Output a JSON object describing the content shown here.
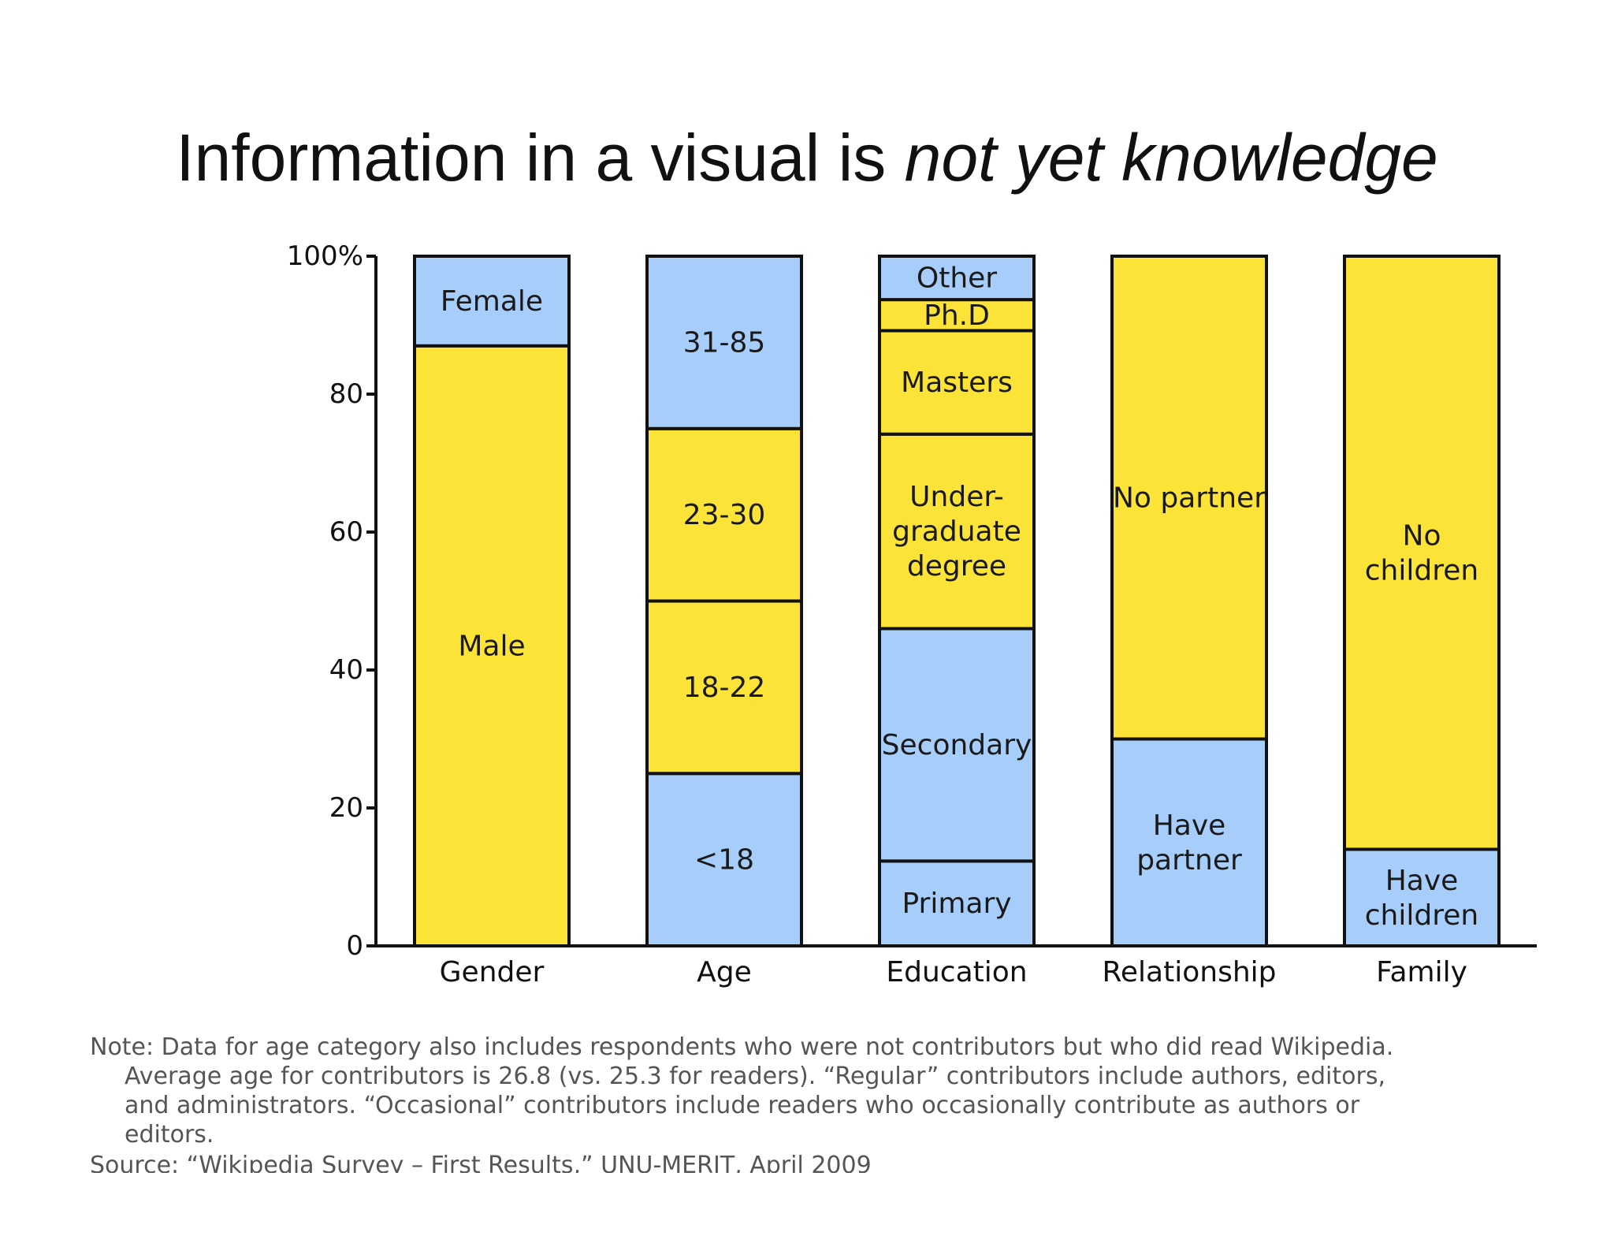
{
  "slide": {
    "title_plain": "Information in a visual is ",
    "title_emphasis": "not yet knowledge"
  },
  "chart_data": {
    "type": "bar",
    "stacked": true,
    "percent": true,
    "categories": [
      "Gender",
      "Age",
      "Education",
      "Relationship",
      "Family"
    ],
    "yticks": [
      "0",
      "20",
      "40",
      "60",
      "80",
      "100%"
    ],
    "ylim": [
      0,
      100
    ],
    "grid": false,
    "colors": {
      "blue": "#a7cefa",
      "yellow": "#fbe338",
      "outline": "#111111"
    },
    "stacks": [
      {
        "category": "Gender",
        "segments": [
          {
            "label": [
              "Male"
            ],
            "value": 87,
            "color": "yellow"
          },
          {
            "label": [
              "Female"
            ],
            "value": 13,
            "color": "blue"
          }
        ]
      },
      {
        "category": "Age",
        "segments": [
          {
            "label": [
              "<18"
            ],
            "value": 25,
            "color": "blue"
          },
          {
            "label": [
              "18-22"
            ],
            "value": 25,
            "color": "yellow"
          },
          {
            "label": [
              "23-30"
            ],
            "value": 25,
            "color": "yellow"
          },
          {
            "label": [
              "31-85"
            ],
            "value": 25,
            "color": "blue"
          }
        ]
      },
      {
        "category": "Education",
        "segments": [
          {
            "label": [
              "Primary"
            ],
            "value": 12.3,
            "color": "blue"
          },
          {
            "label": [
              "Secondary"
            ],
            "value": 33.7,
            "color": "blue"
          },
          {
            "label": [
              "Under-",
              "graduate",
              "degree"
            ],
            "value": 28.2,
            "color": "yellow"
          },
          {
            "label": [
              "Masters"
            ],
            "value": 15,
            "color": "yellow"
          },
          {
            "label": [
              "Ph.D"
            ],
            "value": 4.5,
            "color": "yellow"
          },
          {
            "label": [
              "Other"
            ],
            "value": 6.3,
            "color": "blue"
          }
        ]
      },
      {
        "category": "Relationship",
        "segments": [
          {
            "label": [
              "Have",
              "partner"
            ],
            "value": 30,
            "color": "blue"
          },
          {
            "label": [
              "No partner"
            ],
            "value": 70,
            "color": "yellow"
          }
        ]
      },
      {
        "category": "Family",
        "segments": [
          {
            "label": [
              "Have",
              "children"
            ],
            "value": 14,
            "color": "blue"
          },
          {
            "label": [
              "No",
              "children"
            ],
            "value": 86,
            "color": "yellow"
          }
        ]
      }
    ]
  },
  "footnote": {
    "note": "Note: Data for age category also includes respondents who were not contributors but who did read Wikipedia. Average age for contributors is 26.8 (vs. 25.3 for readers). “Regular” contributors include authors, editors, and administrators. “Occasional” contributors include readers who occasionally contribute as authors or editors.",
    "source": "Source: “Wikipedia Survey – First Results,” UNU-MERIT, April 2009"
  }
}
